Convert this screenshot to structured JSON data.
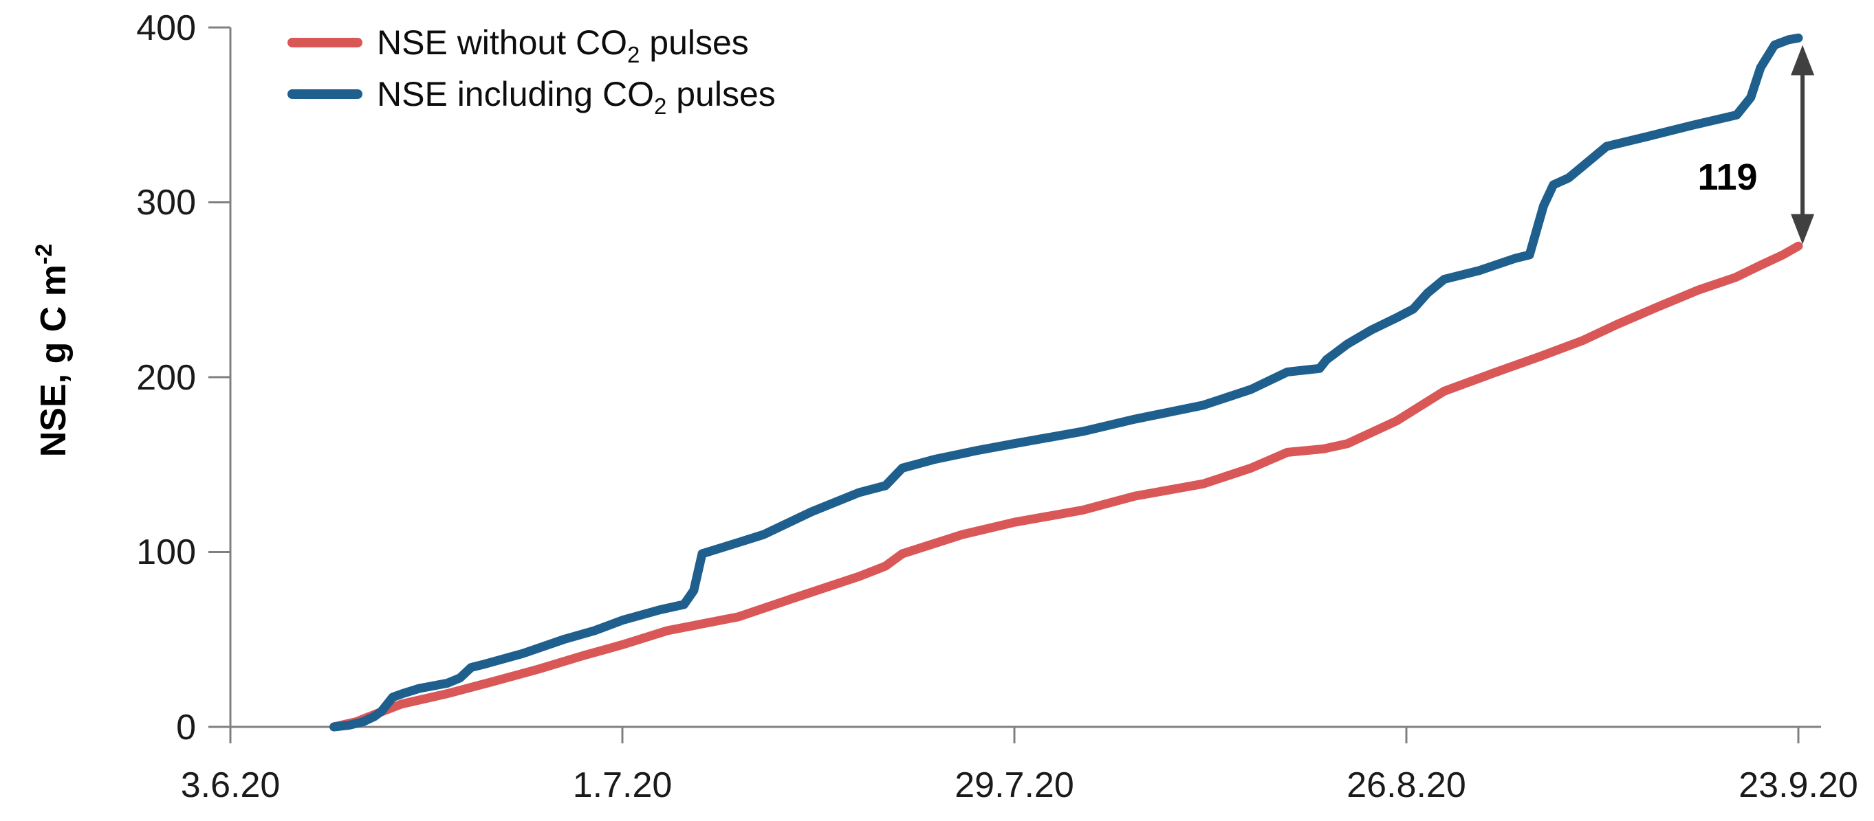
{
  "chart_data": {
    "type": "line",
    "title": "",
    "xlabel": "",
    "ylabel": {
      "prefix": "NSE, g C m",
      "superscript": "-2"
    },
    "ylim": [
      0,
      400
    ],
    "xlim_days": [
      0,
      112
    ],
    "grid": false,
    "legend_position": "top-left",
    "axis_color": "#808080",
    "y_ticks": [
      0,
      100,
      200,
      300,
      400
    ],
    "y_tick_labels": [
      "0",
      "100",
      "200",
      "300",
      "400"
    ],
    "x_tick_days": [
      0,
      28,
      56,
      84,
      112
    ],
    "x_tick_labels": [
      "3.6.20",
      "1.7.20",
      "29.7.20",
      "26.8.20",
      "23.9.20"
    ],
    "series": [
      {
        "name_prefix": "NSE without CO",
        "name_sub": "2",
        "name_suffix": " pulses",
        "color": "#D95757",
        "points": [
          [
            7.4,
            0
          ],
          [
            9,
            3
          ],
          [
            10.6,
            8
          ],
          [
            12.2,
            13
          ],
          [
            15.5,
            19
          ],
          [
            18.8,
            26
          ],
          [
            22,
            33
          ],
          [
            25.3,
            41
          ],
          [
            28,
            47
          ],
          [
            31.2,
            55
          ],
          [
            36.3,
            63
          ],
          [
            40,
            73
          ],
          [
            44.9,
            86
          ],
          [
            46.8,
            92
          ],
          [
            48,
            99
          ],
          [
            52.3,
            110
          ],
          [
            56,
            117
          ],
          [
            60.9,
            124
          ],
          [
            64.6,
            132
          ],
          [
            69.5,
            139
          ],
          [
            72.9,
            148
          ],
          [
            75.5,
            157
          ],
          [
            78.1,
            159
          ],
          [
            79.8,
            162
          ],
          [
            83.3,
            175
          ],
          [
            86.7,
            192
          ],
          [
            90.1,
            202
          ],
          [
            93.6,
            212
          ],
          [
            96.6,
            221
          ],
          [
            99,
            230
          ],
          [
            101.9,
            240
          ],
          [
            104.9,
            250
          ],
          [
            107.5,
            257
          ],
          [
            109.3,
            264
          ],
          [
            110.9,
            270
          ],
          [
            112,
            275
          ]
        ]
      },
      {
        "name_prefix": "NSE including CO",
        "name_sub": "2",
        "name_suffix": " pulses",
        "color": "#1E5F8E",
        "points": [
          [
            7.4,
            0
          ],
          [
            8.5,
            1
          ],
          [
            9.5,
            3
          ],
          [
            10.3,
            6
          ],
          [
            10.8,
            9
          ],
          [
            11.6,
            17
          ],
          [
            12.3,
            19
          ],
          [
            13.5,
            22
          ],
          [
            15.5,
            25
          ],
          [
            16.4,
            28
          ],
          [
            17.2,
            34
          ],
          [
            18.2,
            36
          ],
          [
            20.9,
            42
          ],
          [
            23.8,
            50
          ],
          [
            26,
            55
          ],
          [
            28,
            61
          ],
          [
            30.7,
            67
          ],
          [
            32.4,
            70
          ],
          [
            33.1,
            78
          ],
          [
            33.7,
            99
          ],
          [
            36.1,
            105
          ],
          [
            38.1,
            110
          ],
          [
            41.5,
            123
          ],
          [
            44.9,
            134
          ],
          [
            46.8,
            138
          ],
          [
            48,
            148
          ],
          [
            50.3,
            153
          ],
          [
            53.3,
            158
          ],
          [
            56,
            162
          ],
          [
            60.9,
            169
          ],
          [
            64.6,
            176
          ],
          [
            69.5,
            184
          ],
          [
            72.9,
            193
          ],
          [
            75.5,
            203
          ],
          [
            77.8,
            205
          ],
          [
            78.3,
            210
          ],
          [
            79.8,
            219
          ],
          [
            81.5,
            227
          ],
          [
            83.3,
            234
          ],
          [
            84.5,
            239
          ],
          [
            85.5,
            248
          ],
          [
            86.7,
            256
          ],
          [
            89.2,
            261
          ],
          [
            91.8,
            268
          ],
          [
            92.8,
            270
          ],
          [
            93.8,
            298
          ],
          [
            94.5,
            310
          ],
          [
            95.6,
            314
          ],
          [
            98.3,
            332
          ],
          [
            101.4,
            338
          ],
          [
            104.4,
            344
          ],
          [
            107.6,
            350
          ],
          [
            108.6,
            360
          ],
          [
            109.3,
            377
          ],
          [
            110.3,
            390
          ],
          [
            111.3,
            393
          ],
          [
            112,
            394
          ]
        ]
      }
    ],
    "annotation": {
      "label": "119",
      "arrow_x_day": 112.3,
      "arrow_y_from": 276,
      "arrow_y_to": 390,
      "color": "#404040"
    }
  }
}
